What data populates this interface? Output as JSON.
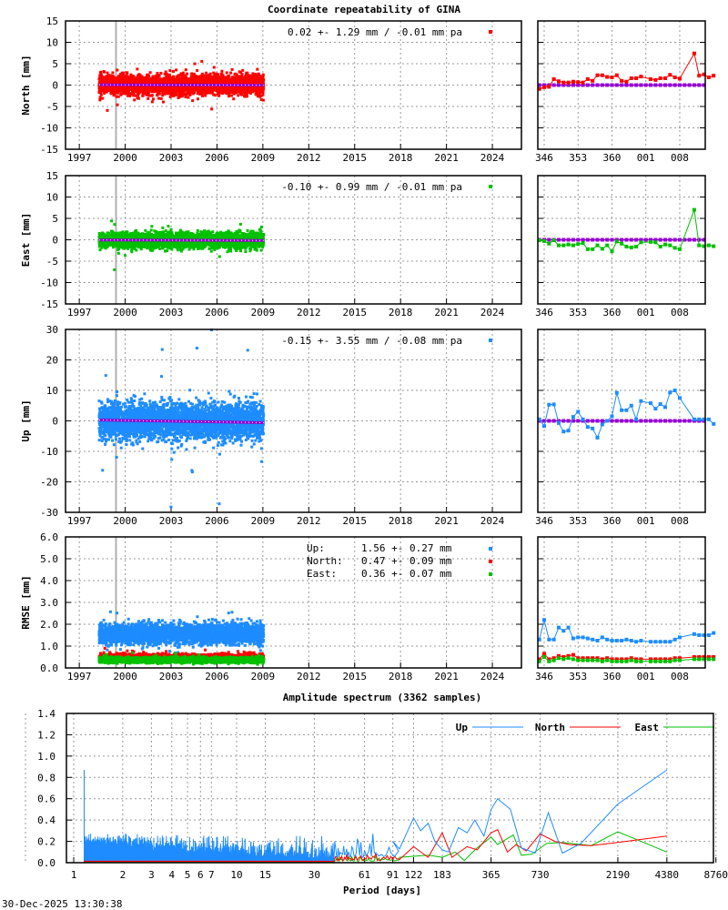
{
  "title": "Coordinate repeatability of GINA",
  "timestamp": "30-Dec-2025 13:30:38",
  "colors": {
    "north": "#ff0000",
    "east": "#00c000",
    "up": "#1e8cff",
    "trend": "#9400d3",
    "marker_gray": "#b0b0b0"
  },
  "chart_data": [
    {
      "type": "scatter",
      "id": "north",
      "ylabel": "North [mm]",
      "ylim": [
        -15,
        15
      ],
      "yticks": [
        -15,
        -10,
        -5,
        0,
        5,
        10,
        15
      ],
      "xlim": [
        1996.1,
        2025.9
      ],
      "xticks": [
        1997,
        2000,
        2003,
        2006,
        2009,
        2012,
        2015,
        2018,
        2021,
        2024
      ],
      "legend": "0.02 +- 1.29 mm / -0.01 mm pa",
      "mean": 0.02,
      "std": 1.29,
      "trend_mm_pa": -0.01,
      "data_span": [
        1998.3,
        2009.05
      ],
      "marked_epoch": 1999.4,
      "recent": {
        "doy": [
          345,
          346,
          347,
          348,
          349,
          350,
          351,
          352,
          353,
          354,
          355,
          356,
          357,
          358,
          359,
          360,
          361,
          362,
          363,
          364,
          365,
          366,
          1,
          2,
          3,
          4,
          5,
          6,
          7,
          10,
          11,
          12,
          13,
          14
        ],
        "values": [
          -0.9,
          -0.5,
          -0.4,
          1.4,
          0.9,
          0.6,
          0.6,
          0.8,
          0.7,
          0.6,
          1.4,
          1.0,
          2.3,
          2.3,
          1.9,
          1.8,
          2.3,
          1.0,
          0.8,
          1.6,
          1.6,
          2.0,
          1.4,
          1.2,
          1.6,
          1.6,
          2.4,
          1.8,
          1.5,
          7.4,
          2.2,
          2.5,
          1.8,
          2.2
        ]
      }
    },
    {
      "type": "scatter",
      "id": "east",
      "ylabel": "East [mm]",
      "ylim": [
        -15,
        15
      ],
      "yticks": [
        -15,
        -10,
        -5,
        0,
        5,
        10,
        15
      ],
      "xlim": [
        1996.1,
        2025.9
      ],
      "xticks": [
        1997,
        2000,
        2003,
        2006,
        2009,
        2012,
        2015,
        2018,
        2021,
        2024
      ],
      "legend": "-0.10 +- 0.99 mm / -0.01 mm pa",
      "mean": -0.1,
      "std": 0.99,
      "trend_mm_pa": -0.01,
      "data_span": [
        1998.3,
        2009.05
      ],
      "marked_epoch": 1999.4,
      "recent": {
        "doy": [
          345,
          346,
          347,
          348,
          349,
          350,
          351,
          352,
          353,
          354,
          355,
          356,
          357,
          358,
          359,
          360,
          361,
          362,
          363,
          364,
          365,
          366,
          1,
          2,
          3,
          4,
          5,
          6,
          7,
          10,
          11,
          12,
          13,
          14
        ],
        "values": [
          -0.1,
          -0.3,
          -0.9,
          -0.1,
          -1.3,
          -1.3,
          -1.1,
          -1.3,
          -1.0,
          -0.8,
          -2.2,
          -2.2,
          -1.3,
          -2.1,
          -1.3,
          -2.7,
          -0.4,
          -0.9,
          -1.6,
          -1.8,
          -1.6,
          -0.6,
          -0.5,
          -0.6,
          -1.6,
          -1.1,
          -1.3,
          -1.9,
          -2.2,
          7.0,
          -1.3,
          -1.5,
          -1.3,
          -1.5
        ]
      }
    },
    {
      "type": "scatter",
      "id": "up",
      "ylabel": "Up [mm]",
      "ylim": [
        -30,
        30
      ],
      "yticks": [
        -30,
        -20,
        -10,
        0,
        10,
        20,
        30
      ],
      "xlim": [
        1996.1,
        2025.9
      ],
      "xticks": [
        1997,
        2000,
        2003,
        2006,
        2009,
        2012,
        2015,
        2018,
        2021,
        2024
      ],
      "legend": "-0.15 +- 3.55 mm / -0.08 mm pa",
      "mean": -0.15,
      "std": 3.55,
      "trend_mm_pa": -0.08,
      "data_span": [
        1998.3,
        2009.05
      ],
      "marked_epoch": 1999.4,
      "recent": {
        "doy": [
          345,
          346,
          347,
          348,
          349,
          350,
          351,
          352,
          353,
          354,
          355,
          356,
          357,
          358,
          359,
          360,
          361,
          362,
          363,
          364,
          365,
          366,
          1,
          2,
          3,
          4,
          5,
          6,
          7,
          10,
          11,
          12,
          13,
          14
        ],
        "values": [
          0.5,
          -1.7,
          5.3,
          5.4,
          -0.7,
          -3.5,
          -3.2,
          1.3,
          3.0,
          0.5,
          -2.0,
          -2.5,
          -5.5,
          -1.2,
          0.0,
          1.5,
          9.2,
          3.5,
          3.5,
          5.0,
          0.5,
          6.5,
          5.8,
          4.0,
          5.5,
          4.5,
          9.3,
          10.0,
          7.5,
          0.5,
          0.5,
          0.5,
          0.5,
          -1.0
        ]
      }
    },
    {
      "type": "scatter",
      "id": "rmse",
      "ylabel": "RMSE [mm]",
      "ylim": [
        0,
        6
      ],
      "yticks": [
        "0.0",
        "1.0",
        "2.0",
        "3.0",
        "4.0",
        "5.0",
        "6.0"
      ],
      "xlim": [
        1996.1,
        2025.9
      ],
      "xticks": [
        1997,
        2000,
        2003,
        2006,
        2009,
        2012,
        2015,
        2018,
        2021,
        2024
      ],
      "data_span": [
        1998.3,
        2009.05
      ],
      "marked_epoch": 1999.4,
      "series": [
        {
          "name": "Up:",
          "stat": "1.56 +- 0.27 mm",
          "mean": 1.56,
          "std": 0.27,
          "color_key": "up",
          "recent": [
            1.3,
            2.2,
            1.3,
            1.3,
            1.85,
            1.7,
            1.85,
            1.35,
            1.4,
            1.4,
            1.35,
            1.3,
            1.25,
            1.4,
            1.3,
            1.25,
            1.25,
            1.25,
            1.3,
            1.25,
            1.2,
            1.25,
            1.2,
            1.2,
            1.2,
            1.2,
            1.2,
            1.3,
            1.4,
            1.55,
            1.5,
            1.5,
            1.5,
            1.6
          ]
        },
        {
          "name": "North:",
          "stat": "0.47 +- 0.09 mm",
          "mean": 0.47,
          "std": 0.09,
          "color_key": "north",
          "recent": [
            0.4,
            0.65,
            0.4,
            0.45,
            0.55,
            0.5,
            0.55,
            0.6,
            0.45,
            0.45,
            0.45,
            0.45,
            0.45,
            0.4,
            0.45,
            0.4,
            0.4,
            0.4,
            0.4,
            0.45,
            0.4,
            0.4,
            0.4,
            0.4,
            0.4,
            0.4,
            0.4,
            0.45,
            0.45,
            0.5,
            0.5,
            0.5,
            0.5,
            0.5
          ]
        },
        {
          "name": "East:",
          "stat": "0.36 +- 0.07 mm",
          "mean": 0.36,
          "std": 0.07,
          "color_key": "east",
          "recent": [
            0.3,
            0.5,
            0.3,
            0.35,
            0.45,
            0.4,
            0.45,
            0.4,
            0.35,
            0.35,
            0.35,
            0.35,
            0.35,
            0.3,
            0.35,
            0.3,
            0.3,
            0.3,
            0.3,
            0.35,
            0.3,
            0.3,
            0.3,
            0.3,
            0.3,
            0.3,
            0.3,
            0.35,
            0.35,
            0.4,
            0.4,
            0.4,
            0.4,
            0.4
          ]
        }
      ],
      "recent_doy": [
        345,
        346,
        347,
        348,
        349,
        350,
        351,
        352,
        353,
        354,
        355,
        356,
        357,
        358,
        359,
        360,
        361,
        362,
        363,
        364,
        365,
        366,
        1,
        2,
        3,
        4,
        5,
        6,
        7,
        10,
        11,
        12,
        13,
        14
      ]
    },
    {
      "type": "line",
      "id": "spectrum",
      "title": "Amplitude spectrum (3362 samples)",
      "xlabel": "Period [days]",
      "xscale": "log",
      "xticks": [
        1,
        2,
        3,
        4,
        5,
        6,
        7,
        10,
        15,
        30,
        61,
        91,
        122,
        183,
        365,
        730,
        2190,
        4380,
        8760
      ],
      "ylim": [
        0,
        1.4
      ],
      "yticks": [
        "0.0",
        "0.2",
        "0.4",
        "0.6",
        "0.8",
        "1.0",
        "1.2",
        "1.4"
      ],
      "legend_position": "top-right",
      "series": [
        {
          "name": "Up",
          "color_key": "up",
          "short_period_level": 0.12,
          "first_peak": 0.87,
          "long_period": [
            [
              91,
              0.2
            ],
            [
              100,
              0.13
            ],
            [
              122,
              0.42
            ],
            [
              135,
              0.3
            ],
            [
              150,
              0.37
            ],
            [
              165,
              0.2
            ],
            [
              183,
              0.12
            ],
            [
              200,
              0.1
            ],
            [
              230,
              0.33
            ],
            [
              260,
              0.28
            ],
            [
              290,
              0.4
            ],
            [
              330,
              0.25
            ],
            [
              365,
              0.5
            ],
            [
              400,
              0.6
            ],
            [
              480,
              0.5
            ],
            [
              560,
              0.14
            ],
            [
              680,
              0.09
            ],
            [
              820,
              0.47
            ],
            [
              1000,
              0.09
            ],
            [
              1300,
              0.18
            ],
            [
              2190,
              0.55
            ],
            [
              4380,
              0.87
            ]
          ]
        },
        {
          "name": "North",
          "color_key": "north",
          "short_period_level": 0.05,
          "first_peak": 0.3,
          "long_period": [
            [
              100,
              0.03
            ],
            [
              122,
              0.15
            ],
            [
              150,
              0.05
            ],
            [
              183,
              0.28
            ],
            [
              210,
              0.05
            ],
            [
              260,
              0.15
            ],
            [
              300,
              0.12
            ],
            [
              365,
              0.28
            ],
            [
              400,
              0.31
            ],
            [
              460,
              0.1
            ],
            [
              520,
              0.17
            ],
            [
              600,
              0.11
            ],
            [
              730,
              0.27
            ],
            [
              900,
              0.2
            ],
            [
              1100,
              0.17
            ],
            [
              1500,
              0.16
            ],
            [
              2190,
              0.19
            ],
            [
              4380,
              0.25
            ]
          ]
        },
        {
          "name": "East",
          "color_key": "east",
          "short_period_level": 0.035,
          "first_peak": 0.12,
          "long_period": [
            [
              100,
              0.05
            ],
            [
              150,
              0.07
            ],
            [
              183,
              0.05
            ],
            [
              220,
              0.1
            ],
            [
              250,
              0.02
            ],
            [
              300,
              0.14
            ],
            [
              365,
              0.24
            ],
            [
              400,
              0.17
            ],
            [
              500,
              0.26
            ],
            [
              560,
              0.07
            ],
            [
              650,
              0.08
            ],
            [
              800,
              0.18
            ],
            [
              1000,
              0.19
            ],
            [
              1500,
              0.16
            ],
            [
              2190,
              0.29
            ],
            [
              4380,
              0.1
            ]
          ]
        }
      ]
    }
  ]
}
